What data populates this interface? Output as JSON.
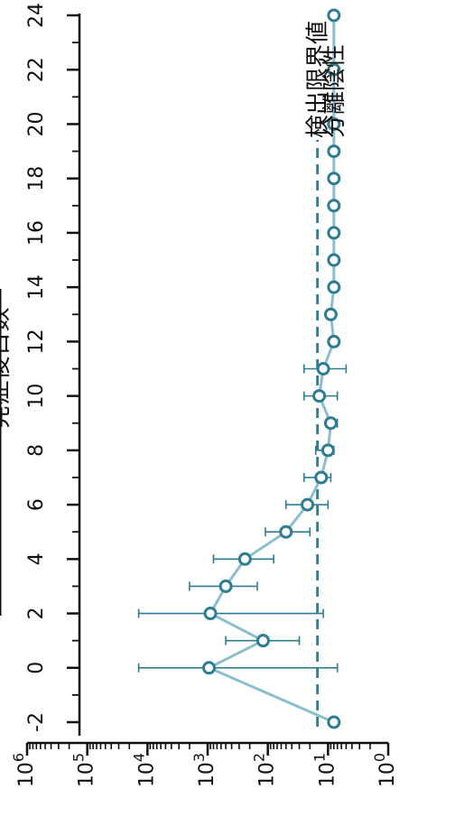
{
  "chart_data": {
    "type": "line",
    "xlabel": "発症後日数",
    "ylabel": "",
    "x_ticks": [
      -2,
      0,
      2,
      4,
      6,
      8,
      10,
      12,
      14,
      16,
      18,
      20,
      22,
      24
    ],
    "y_scale": "log",
    "ylim": [
      1,
      1000000
    ],
    "y_tick_labels": [
      "10^0",
      "10^1",
      "10^2",
      "10^3",
      "10^4",
      "10^5",
      "10^6"
    ],
    "series": [
      {
        "name": "分離陰性",
        "color": "#2e7d92",
        "points": [
          {
            "x": -2,
            "y": 8
          },
          {
            "x": 0,
            "y": 950,
            "err_low": 7,
            "err_high": 14000
          },
          {
            "x": 1,
            "y": 120,
            "err_low": 30,
            "err_high": 500
          },
          {
            "x": 2,
            "y": 900,
            "err_low": 12,
            "err_high": 14000
          },
          {
            "x": 3,
            "y": 500,
            "err_low": 150,
            "err_high": 2000
          },
          {
            "x": 4,
            "y": 240,
            "err_low": 80,
            "err_high": 800
          },
          {
            "x": 5,
            "y": 50,
            "err_low": 20,
            "err_high": 110
          },
          {
            "x": 6,
            "y": 22,
            "err_low": 10,
            "err_high": 50
          },
          {
            "x": 7,
            "y": 13,
            "err_low": 9,
            "err_high": 25
          },
          {
            "x": 8,
            "y": 10,
            "err_low": 8,
            "err_high": 16
          },
          {
            "x": 9,
            "y": 9,
            "err_low": 7,
            "err_high": 10
          },
          {
            "x": 10,
            "y": 14,
            "err_low": 7,
            "err_high": 25
          },
          {
            "x": 11,
            "y": 12,
            "err_low": 5,
            "err_high": 25
          },
          {
            "x": 12,
            "y": 8
          },
          {
            "x": 13,
            "y": 9,
            "err_low": 8,
            "err_high": 10
          },
          {
            "x": 14,
            "y": 8
          },
          {
            "x": 15,
            "y": 8
          },
          {
            "x": 16,
            "y": 8
          },
          {
            "x": 17,
            "y": 8
          },
          {
            "x": 18,
            "y": 8
          },
          {
            "x": 19,
            "y": 8
          },
          {
            "x": 20,
            "y": 8
          },
          {
            "x": 22,
            "y": 8
          },
          {
            "x": 24,
            "y": 8
          }
        ]
      }
    ],
    "reference_lines": [
      {
        "name": "検出限界値",
        "y": 15,
        "style": "dashed",
        "color": "#2e7d92"
      }
    ],
    "legend_placement": "top"
  }
}
